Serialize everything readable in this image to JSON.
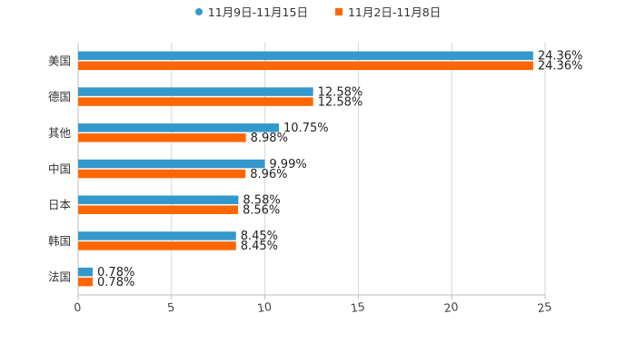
{
  "chart_data": {
    "type": "bar",
    "orientation": "horizontal",
    "title": "",
    "xlabel": "",
    "ylabel": "",
    "xlim": [
      0,
      25
    ],
    "xticks": [
      0,
      5,
      10,
      15,
      20,
      25
    ],
    "grid": true,
    "legend_position": "top-center",
    "categories": [
      "美国",
      "德国",
      "其他",
      "中国",
      "日本",
      "韩国",
      "法国"
    ],
    "series": [
      {
        "name": "11月9日-11月15日",
        "color": "#3399cc",
        "marker": "circle",
        "values": [
          24.36,
          12.58,
          10.75,
          9.99,
          8.58,
          8.45,
          0.78
        ],
        "labels": [
          "24.36%",
          "12.58%",
          "10.75%",
          "9.99%",
          "8.58%",
          "8.45%",
          "0.78%"
        ]
      },
      {
        "name": "11月2日-11月8日",
        "color": "#ff6600",
        "marker": "square",
        "values": [
          24.36,
          12.58,
          8.98,
          8.96,
          8.56,
          8.45,
          0.78
        ],
        "labels": [
          "24.36%",
          "12.58%",
          "8.98%",
          "8.96%",
          "8.56%",
          "8.45%",
          "0.78%"
        ]
      }
    ]
  }
}
